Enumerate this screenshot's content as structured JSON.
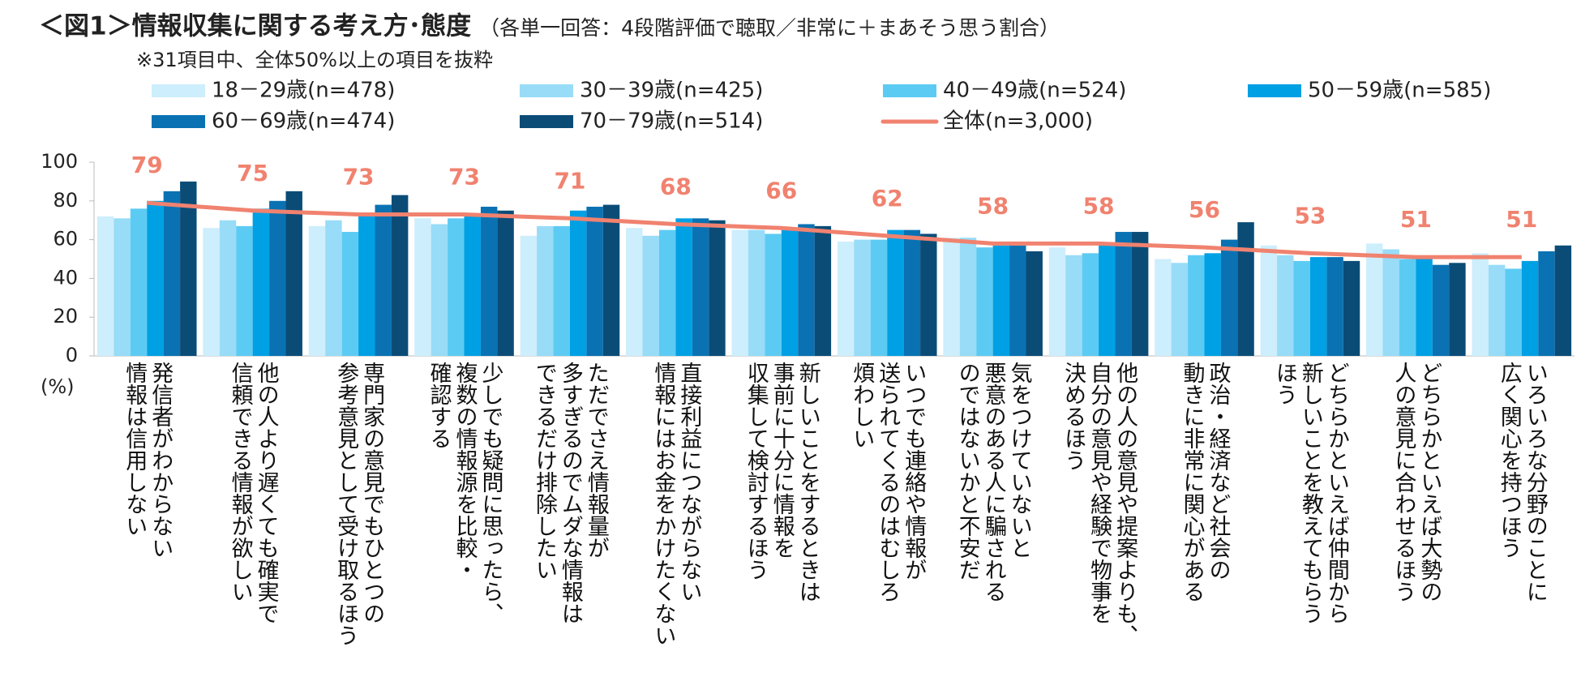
{
  "chart_data": {
    "type": "bar",
    "title": "＜図1＞情報収集に関する考え方･態度",
    "subtitle": "（各単一回答：4段階評価で聴取／非常に＋まあそう思う割合）",
    "note": "※31項目中、全体50%以上の項目を抜粋",
    "y_unit": "(%)",
    "categories": [
      "発信者がわからない\n情報は信用しない",
      "他の人より遅くても確実で\n信頼できる情報が欲しい",
      "専門家の意見でもひとつの\n参考意見として受け取るほう",
      "少しでも疑問に思ったら、\n複数の情報源を比較・\n確認する",
      "ただでさえ情報量が\n多すぎるのでムダな情報は\nできるだけ排除したい",
      "直接利益につながらない\n情報にはお金をかけたくない",
      "新しいことをするときは\n事前に十分に情報を\n収集して検討するほう",
      "いつでも連絡や情報が\n送られてくるのはむしろ\n煩わしい",
      "気をつけていないと\n悪意のある人に騙される\nのではないかと不安だ",
      "他の人の意見や提案よりも、\n自分の意見や経験で物事を\n決めるほう",
      "政治・経済など社会の\n動きに非常に関心がある",
      "どちらかといえば仲間から\n新しいことを教えてもらう\nほう",
      "どちらかといえば大勢の\n人の意見に合わせるほう",
      "いろいろな分野のことに\n広く関心を持つほう"
    ],
    "series": [
      {
        "name": "18－29歳(n=478)",
        "color": "#cdeefc",
        "values": [
          72,
          66,
          67,
          71,
          62,
          66,
          65,
          59,
          61,
          56,
          50,
          57,
          58,
          53
        ]
      },
      {
        "name": "30－39歳(n=425)",
        "color": "#98dcf7",
        "values": [
          71,
          70,
          70,
          68,
          67,
          62,
          65,
          60,
          61,
          52,
          48,
          52,
          55,
          47
        ]
      },
      {
        "name": "40－49歳(n=524)",
        "color": "#5ccbf4",
        "values": [
          76,
          67,
          64,
          71,
          67,
          65,
          63,
          60,
          56,
          53,
          52,
          49,
          50,
          45
        ]
      },
      {
        "name": "50－59歳(n=585)",
        "color": "#00a0e4",
        "values": [
          80,
          76,
          73,
          72,
          75,
          71,
          65,
          65,
          57,
          57,
          53,
          51,
          50,
          49
        ]
      },
      {
        "name": "60－69歳(n=474)",
        "color": "#0a72b3",
        "values": [
          85,
          80,
          78,
          77,
          77,
          71,
          68,
          65,
          57,
          64,
          60,
          51,
          47,
          54
        ]
      },
      {
        "name": "70－79歳(n=514)",
        "color": "#0b4c77",
        "values": [
          90,
          85,
          83,
          75,
          78,
          70,
          67,
          63,
          54,
          64,
          69,
          49,
          48,
          57
        ]
      },
      {
        "name": "全体(n=3,000)",
        "color": "#f0826f",
        "type": "line",
        "values": [
          79,
          75,
          73,
          73,
          71,
          68,
          66,
          62,
          58,
          58,
          56,
          53,
          51,
          51
        ]
      }
    ],
    "ylim": [
      0,
      100
    ],
    "yticks": [
      0,
      20,
      40,
      60,
      80,
      100
    ]
  }
}
